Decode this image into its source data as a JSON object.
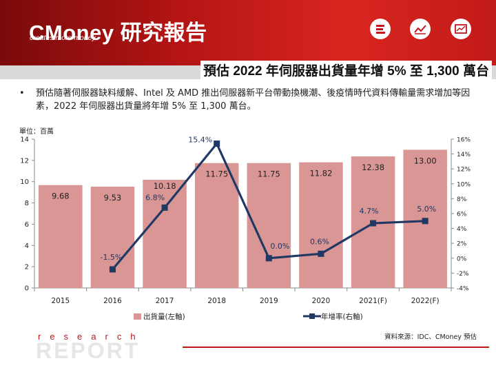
{
  "header": {
    "logo": "CMoney 研究報告",
    "tagline": "creates more money",
    "icons": [
      "menu-stack-icon",
      "line-chart-icon",
      "picture-chart-icon"
    ]
  },
  "page_title": "預估 2022 年伺服器出貨量年增 5% 至 1,300 萬台",
  "bullet": "預估隨著伺服器缺料緩解、Intel 及 AMD 推出伺服器新平台帶動換機潮、後疫情時代資料傳輸量需求增加等因素，2022 年伺服器出貨量將年增 5% 至 1,300 萬台。",
  "chart_data": {
    "type": "bar",
    "unit_label": "單位：百萬",
    "categories": [
      "2015",
      "2016",
      "2017",
      "2018",
      "2019",
      "2020",
      "2021(F)",
      "2022(F)"
    ],
    "series": [
      {
        "name": "出貨量(左軸)",
        "type": "bar",
        "axis": "left",
        "values": [
          9.68,
          9.53,
          10.18,
          11.75,
          11.75,
          11.82,
          12.38,
          13.0
        ],
        "labels": [
          "9.68",
          "9.53",
          "10.18",
          "11.75",
          "11.75",
          "11.82",
          "12.38",
          "13.00"
        ]
      },
      {
        "name": "年增率(右軸)",
        "type": "line",
        "axis": "right",
        "values": [
          null,
          -1.5,
          6.8,
          15.4,
          0.0,
          0.6,
          4.7,
          5.0
        ],
        "labels": [
          "",
          "-1.5%",
          "6.8%",
          "15.4%",
          "0.0%",
          "0.6%",
          "4.7%",
          "5.0%"
        ]
      }
    ],
    "y_left": {
      "min": 0,
      "max": 14,
      "ticks": [
        0,
        2,
        4,
        6,
        8,
        10,
        12,
        14
      ]
    },
    "y_right": {
      "min": -4,
      "max": 16,
      "ticks": [
        "-4%",
        "-2%",
        "0%",
        "2%",
        "4%",
        "6%",
        "8%",
        "10%",
        "12%",
        "14%",
        "16%"
      ]
    },
    "colors": {
      "bar": "#d99694",
      "line": "#1f3864",
      "bar_label": "#222222",
      "line_label": "#1f3864"
    },
    "legend_position": "bottom"
  },
  "footer": {
    "research": "research",
    "report": "REPORT",
    "source": "資料來源：IDC、CMoney 預估"
  }
}
